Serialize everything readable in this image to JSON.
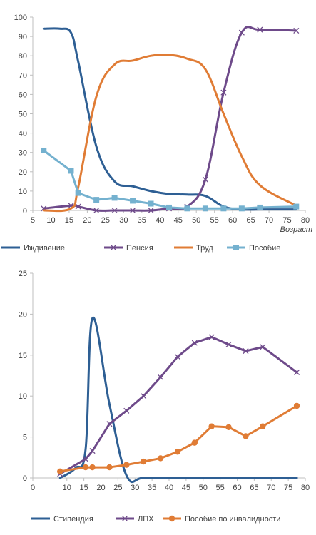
{
  "chart_data": [
    {
      "type": "line",
      "x_axis_title": "Возраст",
      "xlim": [
        5,
        80
      ],
      "ylim": [
        0,
        100
      ],
      "x_ticks": [
        5,
        10,
        15,
        20,
        25,
        30,
        35,
        40,
        45,
        50,
        55,
        60,
        65,
        70,
        75,
        80
      ],
      "y_ticks": [
        0,
        10,
        20,
        30,
        40,
        50,
        60,
        70,
        80,
        90,
        100
      ],
      "legend_position": "bottom",
      "grid": false,
      "series": [
        {
          "name": "Иждивение",
          "color": "#2e5f94",
          "marker": "none",
          "smooth": true,
          "points": [
            [
              8,
              94
            ],
            [
              12.5,
              94
            ],
            [
              15.5,
              92
            ],
            [
              17.5,
              77
            ],
            [
              22.5,
              33
            ],
            [
              27.5,
              15
            ],
            [
              32.5,
              12.5
            ],
            [
              37.5,
              10
            ],
            [
              42.5,
              8.5
            ],
            [
              47.5,
              8.2
            ],
            [
              52.5,
              7.5
            ],
            [
              57.5,
              2
            ],
            [
              62.5,
              0.5
            ],
            [
              67.5,
              0.5
            ],
            [
              72.5,
              0.5
            ],
            [
              77.5,
              0.5
            ]
          ]
        },
        {
          "name": "Пенсия",
          "color": "#6e4a8a",
          "marker": "x",
          "smooth": true,
          "points": [
            [
              8,
              1
            ],
            [
              15.5,
              2.5
            ],
            [
              17.5,
              2
            ],
            [
              22.5,
              0
            ],
            [
              27.5,
              0
            ],
            [
              32.5,
              0
            ],
            [
              37.5,
              0
            ],
            [
              42.5,
              1
            ],
            [
              47.5,
              2
            ],
            [
              52.5,
              16
            ],
            [
              57.5,
              61
            ],
            [
              62.5,
              92
            ],
            [
              67.5,
              93.5
            ],
            [
              77.5,
              93
            ]
          ]
        },
        {
          "name": "Труд",
          "color": "#e07c35",
          "marker": "none",
          "smooth": true,
          "points": [
            [
              8,
              0
            ],
            [
              15.5,
              1
            ],
            [
              17.5,
              12
            ],
            [
              22.5,
              59
            ],
            [
              27.5,
              75.5
            ],
            [
              32.5,
              77.5
            ],
            [
              37.5,
              80
            ],
            [
              42.5,
              80.5
            ],
            [
              47.5,
              78.5
            ],
            [
              52.5,
              73
            ],
            [
              57.5,
              50
            ],
            [
              62.5,
              28
            ],
            [
              67.5,
              13
            ],
            [
              77.5,
              2.5
            ]
          ]
        },
        {
          "name": "Пособие",
          "color": "#74b1cf",
          "marker": "square",
          "smooth": false,
          "points": [
            [
              8,
              31
            ],
            [
              15.5,
              20.5
            ],
            [
              17.5,
              9
            ],
            [
              22.5,
              5.5
            ],
            [
              27.5,
              6.5
            ],
            [
              32.5,
              5
            ],
            [
              37.5,
              3.5
            ],
            [
              42.5,
              1.5
            ],
            [
              47.5,
              1
            ],
            [
              52.5,
              1
            ],
            [
              57.5,
              1
            ],
            [
              62.5,
              1
            ],
            [
              67.5,
              1.5
            ],
            [
              77.5,
              2
            ]
          ]
        }
      ]
    },
    {
      "type": "line",
      "x_axis_title": "",
      "xlim": [
        0,
        80
      ],
      "ylim": [
        0,
        25
      ],
      "x_ticks": [
        0,
        10,
        15,
        20,
        25,
        30,
        35,
        40,
        45,
        50,
        55,
        60,
        65,
        70,
        75,
        80
      ],
      "y_ticks": [
        0,
        5,
        10,
        15,
        20,
        25
      ],
      "legend_position": "bottom",
      "grid": false,
      "series": [
        {
          "name": "Стипендия",
          "color": "#2e5f94",
          "marker": "none",
          "smooth": true,
          "points": [
            [
              8,
              0
            ],
            [
              12.5,
              1.2
            ],
            [
              15.5,
              3.5
            ],
            [
              17.5,
              19.5
            ],
            [
              22.5,
              9
            ],
            [
              27.5,
              0.3
            ],
            [
              32.5,
              0
            ],
            [
              42.5,
              0
            ],
            [
              52.5,
              0
            ],
            [
              62.5,
              0
            ],
            [
              72.5,
              0
            ],
            [
              77.5,
              0
            ]
          ]
        },
        {
          "name": "ЛПХ",
          "color": "#6e4a8a",
          "marker": "x",
          "smooth": false,
          "points": [
            [
              8,
              0.5
            ],
            [
              15.5,
              2.3
            ],
            [
              17.5,
              3.3
            ],
            [
              22.5,
              6.6
            ],
            [
              27.5,
              8.2
            ],
            [
              32.5,
              10
            ],
            [
              37.5,
              12.3
            ],
            [
              42.5,
              14.8
            ],
            [
              47.5,
              16.5
            ],
            [
              52.5,
              17.2
            ],
            [
              57.5,
              16.3
            ],
            [
              62.5,
              15.5
            ],
            [
              67.5,
              16
            ],
            [
              77.5,
              12.9
            ]
          ]
        },
        {
          "name": "Пособие по инвалидности",
          "color": "#e07c35",
          "marker": "circle",
          "smooth": false,
          "points": [
            [
              8,
              0.8
            ],
            [
              15.5,
              1.3
            ],
            [
              17.5,
              1.3
            ],
            [
              22.5,
              1.3
            ],
            [
              27.5,
              1.6
            ],
            [
              32.5,
              2
            ],
            [
              37.5,
              2.4
            ],
            [
              42.5,
              3.2
            ],
            [
              47.5,
              4.3
            ],
            [
              52.5,
              6.3
            ],
            [
              57.5,
              6.2
            ],
            [
              62.5,
              5.1
            ],
            [
              67.5,
              6.3
            ],
            [
              77.5,
              8.8
            ]
          ]
        }
      ]
    }
  ]
}
